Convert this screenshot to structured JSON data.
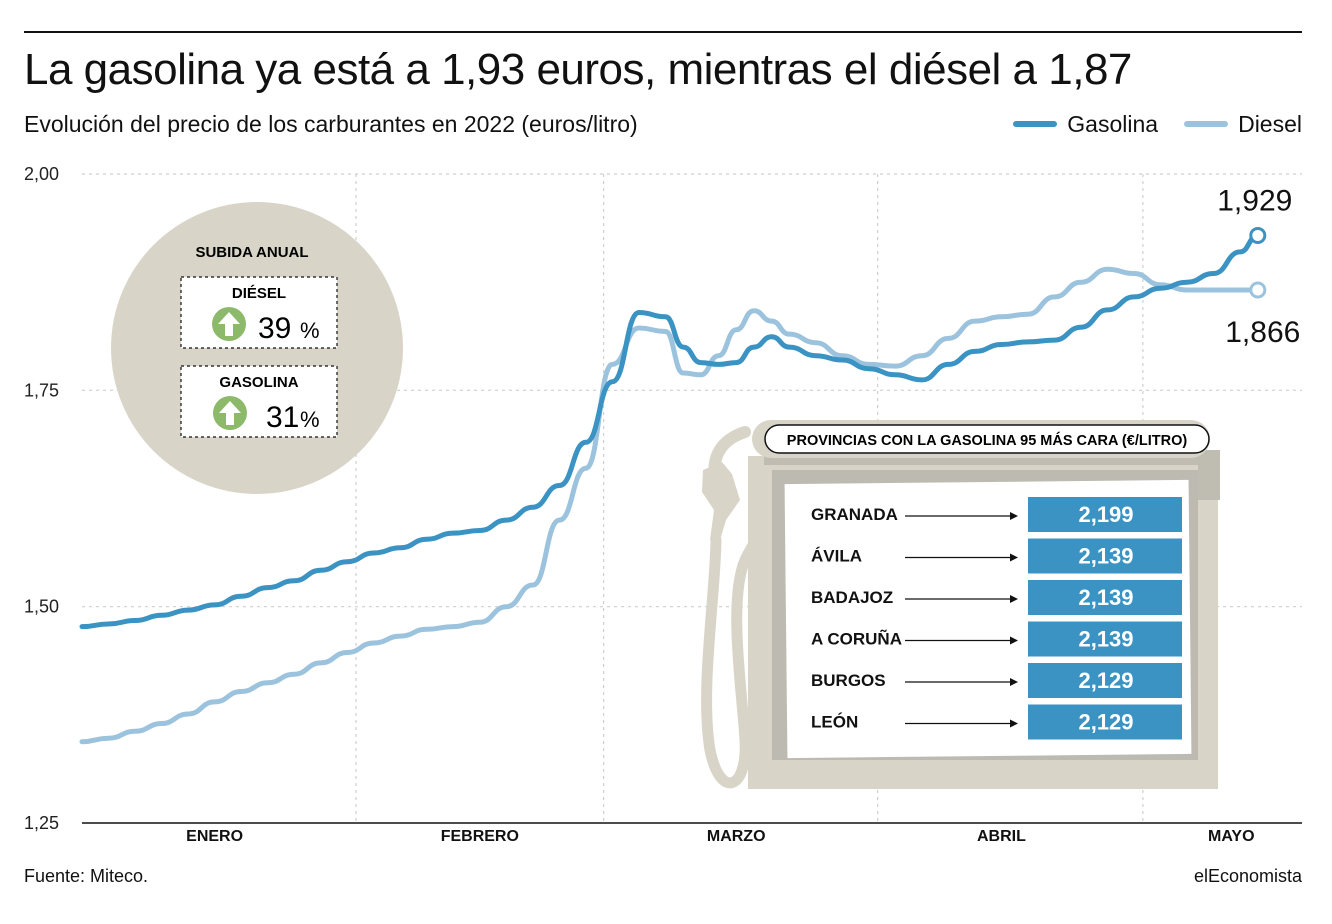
{
  "title": "La gasolina ya está a 1,93 euros, mientras el diésel a 1,87",
  "subtitle": "Evolución del precio de los carburantes en 2022 (euros/litro)",
  "legend": {
    "gasolina": "Gasolina",
    "diesel": "Diesel"
  },
  "colors": {
    "gasolina": "#3a93c2",
    "diesel": "#9cc3dd",
    "grid": "#cfcfcf",
    "circle": "#d8d5c8",
    "arrow_badge": "#8cb96a",
    "price_box": "#3a93c2",
    "pump": "#d8d5c8"
  },
  "annual_rise": {
    "title": "SUBIDA ANUAL",
    "items": [
      {
        "label": "DIÉSEL",
        "value": "39",
        "unit": "%",
        "icon": "arrow-up-icon"
      },
      {
        "label": "GASOLINA",
        "value": "31",
        "unit": "%",
        "icon": "arrow-up-icon"
      }
    ]
  },
  "provinces": {
    "title": "PROVINCIAS CON LA GASOLINA 95 MÁS CARA (€/LITRO)",
    "rows": [
      {
        "name": "GRANADA",
        "price": "2,199"
      },
      {
        "name": "ÁVILA",
        "price": "2,139"
      },
      {
        "name": "BADAJOZ",
        "price": "2,139"
      },
      {
        "name": "A CORUÑA",
        "price": "2,139"
      },
      {
        "name": "BURGOS",
        "price": "2,129"
      },
      {
        "name": "LEÓN",
        "price": "2,129"
      }
    ]
  },
  "chart_data": {
    "type": "line",
    "title": "La gasolina ya está a 1,93 euros, mientras el diésel a 1,87",
    "subtitle": "Evolución del precio de los carburantes en 2022 (euros/litro)",
    "x_axis_type": "date",
    "x_categories": [
      "ENERO",
      "FEBRERO",
      "MARZO",
      "ABRIL",
      "MAYO"
    ],
    "x_range": [
      "2022-01-01",
      "2022-05-15"
    ],
    "y_ticks": [
      "1,25",
      "1,50",
      "1,75",
      "2,00"
    ],
    "ylim": [
      1.25,
      2.0
    ],
    "grid": true,
    "legend_position": "top-right",
    "end_labels": {
      "gasolina": "1,929",
      "diesel": "1,866"
    },
    "series": [
      {
        "name": "Gasolina",
        "x": [
          "2022-01-01",
          "2022-01-04",
          "2022-01-07",
          "2022-01-10",
          "2022-01-13",
          "2022-01-16",
          "2022-01-19",
          "2022-01-22",
          "2022-01-25",
          "2022-01-28",
          "2022-01-31",
          "2022-02-03",
          "2022-02-06",
          "2022-02-09",
          "2022-02-12",
          "2022-02-15",
          "2022-02-18",
          "2022-02-21",
          "2022-02-24",
          "2022-02-27",
          "2022-03-02",
          "2022-03-05",
          "2022-03-08",
          "2022-03-10",
          "2022-03-12",
          "2022-03-14",
          "2022-03-16",
          "2022-03-18",
          "2022-03-20",
          "2022-03-22",
          "2022-03-25",
          "2022-03-28",
          "2022-03-31",
          "2022-04-03",
          "2022-04-06",
          "2022-04-09",
          "2022-04-12",
          "2022-04-15",
          "2022-04-18",
          "2022-04-21",
          "2022-04-24",
          "2022-04-27",
          "2022-04-30",
          "2022-05-03",
          "2022-05-06",
          "2022-05-09",
          "2022-05-12",
          "2022-05-14"
        ],
        "values": [
          1.477,
          1.48,
          1.484,
          1.49,
          1.496,
          1.502,
          1.512,
          1.522,
          1.53,
          1.542,
          1.552,
          1.562,
          1.568,
          1.578,
          1.585,
          1.588,
          1.6,
          1.615,
          1.64,
          1.69,
          1.76,
          1.84,
          1.835,
          1.8,
          1.782,
          1.78,
          1.782,
          1.8,
          1.812,
          1.8,
          1.79,
          1.785,
          1.775,
          1.768,
          1.762,
          1.78,
          1.795,
          1.803,
          1.806,
          1.808,
          1.823,
          1.843,
          1.858,
          1.868,
          1.875,
          1.885,
          1.91,
          1.929
        ]
      },
      {
        "name": "Diesel",
        "x": [
          "2022-01-01",
          "2022-01-04",
          "2022-01-07",
          "2022-01-10",
          "2022-01-13",
          "2022-01-16",
          "2022-01-19",
          "2022-01-22",
          "2022-01-25",
          "2022-01-28",
          "2022-01-31",
          "2022-02-03",
          "2022-02-06",
          "2022-02-09",
          "2022-02-12",
          "2022-02-15",
          "2022-02-18",
          "2022-02-21",
          "2022-02-24",
          "2022-02-27",
          "2022-03-02",
          "2022-03-05",
          "2022-03-08",
          "2022-03-10",
          "2022-03-12",
          "2022-03-14",
          "2022-03-16",
          "2022-03-18",
          "2022-03-20",
          "2022-03-22",
          "2022-03-25",
          "2022-03-28",
          "2022-03-31",
          "2022-04-03",
          "2022-04-06",
          "2022-04-09",
          "2022-04-12",
          "2022-04-15",
          "2022-04-18",
          "2022-04-21",
          "2022-04-24",
          "2022-04-27",
          "2022-04-30",
          "2022-05-03",
          "2022-05-06",
          "2022-05-09",
          "2022-05-12",
          "2022-05-14"
        ],
        "values": [
          1.344,
          1.348,
          1.356,
          1.365,
          1.376,
          1.39,
          1.402,
          1.412,
          1.422,
          1.435,
          1.447,
          1.458,
          1.466,
          1.474,
          1.477,
          1.482,
          1.5,
          1.525,
          1.6,
          1.66,
          1.78,
          1.822,
          1.818,
          1.77,
          1.768,
          1.79,
          1.82,
          1.842,
          1.83,
          1.815,
          1.805,
          1.79,
          1.78,
          1.778,
          1.79,
          1.81,
          1.83,
          1.835,
          1.838,
          1.858,
          1.875,
          1.89,
          1.885,
          1.872,
          1.866,
          1.866,
          1.866,
          1.866
        ]
      }
    ]
  },
  "footer": {
    "source": "Fuente: Miteco.",
    "brand": "elEconomista"
  }
}
